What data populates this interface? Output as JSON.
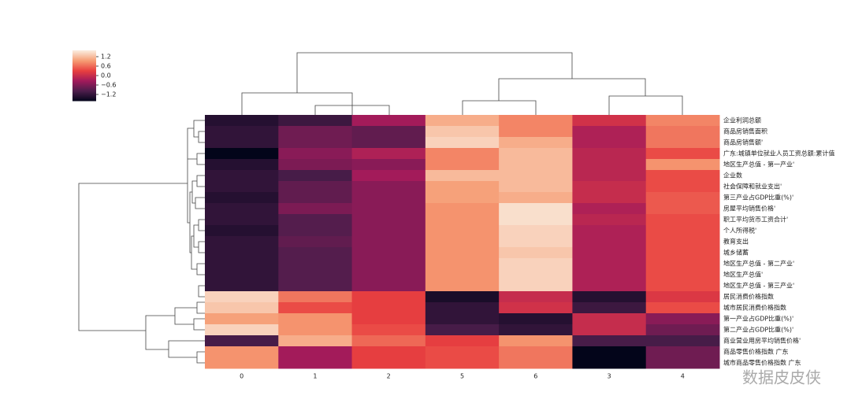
{
  "chart_data": {
    "type": "heatmap",
    "x": [
      "0",
      "1",
      "2",
      "5",
      "6",
      "3",
      "4"
    ],
    "y": [
      "企业利润总额",
      "商品房销售面积",
      "商品房销售额'",
      "广东:城镇单位就业人员工资总额:累计值",
      "地区生产总值 - 第一产业'",
      "企业数",
      "社会保障和就业支出'",
      "第三产业占GDP比重(%)'",
      "房屋平均销售价格'",
      "职工平均货币工资合计'",
      "个人所得税'",
      "教育支出",
      "城乡储蓄",
      "地区生产总值 - 第二产业'",
      "地区生产总值'",
      "地区生产总值 - 第三产业'",
      "居民消费价格指数",
      "城市居民消费价格指数",
      "第一产业占GDP比重(%)'",
      "第二产业占GDP比重(%)'",
      "商业营业用房平均销售价格'",
      "商品零售价格指数 广东",
      "城市商品零售价格指数 广东"
    ],
    "values": [
      [
        -1.3,
        -1.1,
        -0.3,
        1.1,
        0.8,
        0.1,
        0.8
      ],
      [
        -1.2,
        -0.7,
        -0.8,
        1.3,
        0.8,
        -0.2,
        0.7
      ],
      [
        -1.2,
        -0.7,
        -0.8,
        1.4,
        1.1,
        -0.2,
        0.7
      ],
      [
        -1.6,
        -0.5,
        -0.2,
        0.8,
        1.2,
        -0.1,
        0.4
      ],
      [
        -1.3,
        -0.6,
        -0.5,
        0.8,
        1.2,
        -0.1,
        0.9
      ],
      [
        -1.2,
        -1.0,
        -0.3,
        1.2,
        1.2,
        -0.1,
        0.4
      ],
      [
        -1.2,
        -0.8,
        -0.5,
        1.0,
        1.2,
        0.0,
        0.4
      ],
      [
        -1.3,
        -0.8,
        -0.5,
        1.0,
        1.1,
        0.0,
        0.5
      ],
      [
        -1.2,
        -0.6,
        -0.5,
        0.9,
        1.5,
        -0.2,
        0.5
      ],
      [
        -1.2,
        -0.9,
        -0.5,
        0.9,
        1.5,
        -0.1,
        0.4
      ],
      [
        -1.3,
        -0.9,
        -0.5,
        0.9,
        1.4,
        -0.2,
        0.4
      ],
      [
        -1.2,
        -0.8,
        -0.5,
        0.9,
        1.4,
        -0.2,
        0.4
      ],
      [
        -1.2,
        -0.9,
        -0.5,
        0.9,
        1.3,
        -0.2,
        0.4
      ],
      [
        -1.2,
        -0.9,
        -0.5,
        0.9,
        1.4,
        -0.2,
        0.4
      ],
      [
        -1.2,
        -0.9,
        -0.5,
        0.9,
        1.4,
        -0.2,
        0.4
      ],
      [
        -1.2,
        -0.9,
        -0.5,
        0.9,
        1.4,
        -0.2,
        0.4
      ],
      [
        1.4,
        0.7,
        0.3,
        -1.4,
        0.0,
        -1.3,
        0.2
      ],
      [
        1.3,
        0.4,
        0.3,
        -1.2,
        0.1,
        -1.1,
        0.4
      ],
      [
        1.0,
        0.9,
        0.3,
        -1.2,
        -1.3,
        0.0,
        -0.5
      ],
      [
        1.4,
        0.9,
        0.4,
        -1.0,
        -1.2,
        0.0,
        -0.7
      ],
      [
        -1.0,
        1.1,
        0.6,
        0.3,
        0.9,
        -1.0,
        -1.0
      ],
      [
        0.9,
        -0.3,
        0.3,
        0.4,
        0.7,
        -1.6,
        -0.7
      ],
      [
        0.9,
        -0.3,
        0.3,
        0.4,
        0.7,
        -1.6,
        -0.7
      ]
    ],
    "colormap": [
      "#03051a",
      "#4c1d4b",
      "#a11a5b",
      "#e83f3f",
      "#f69c73",
      "#faebdd"
    ],
    "clim": [
      -1.6,
      1.6
    ],
    "cticks": [
      1.2,
      0.6,
      {
        "value": 0,
        "label": "0.0"
      },
      {
        "value": -0.6,
        "label": "−0.6"
      },
      {
        "value": -1.2,
        "label": "−1.2"
      }
    ],
    "watermark": "数据皮皮侠"
  }
}
